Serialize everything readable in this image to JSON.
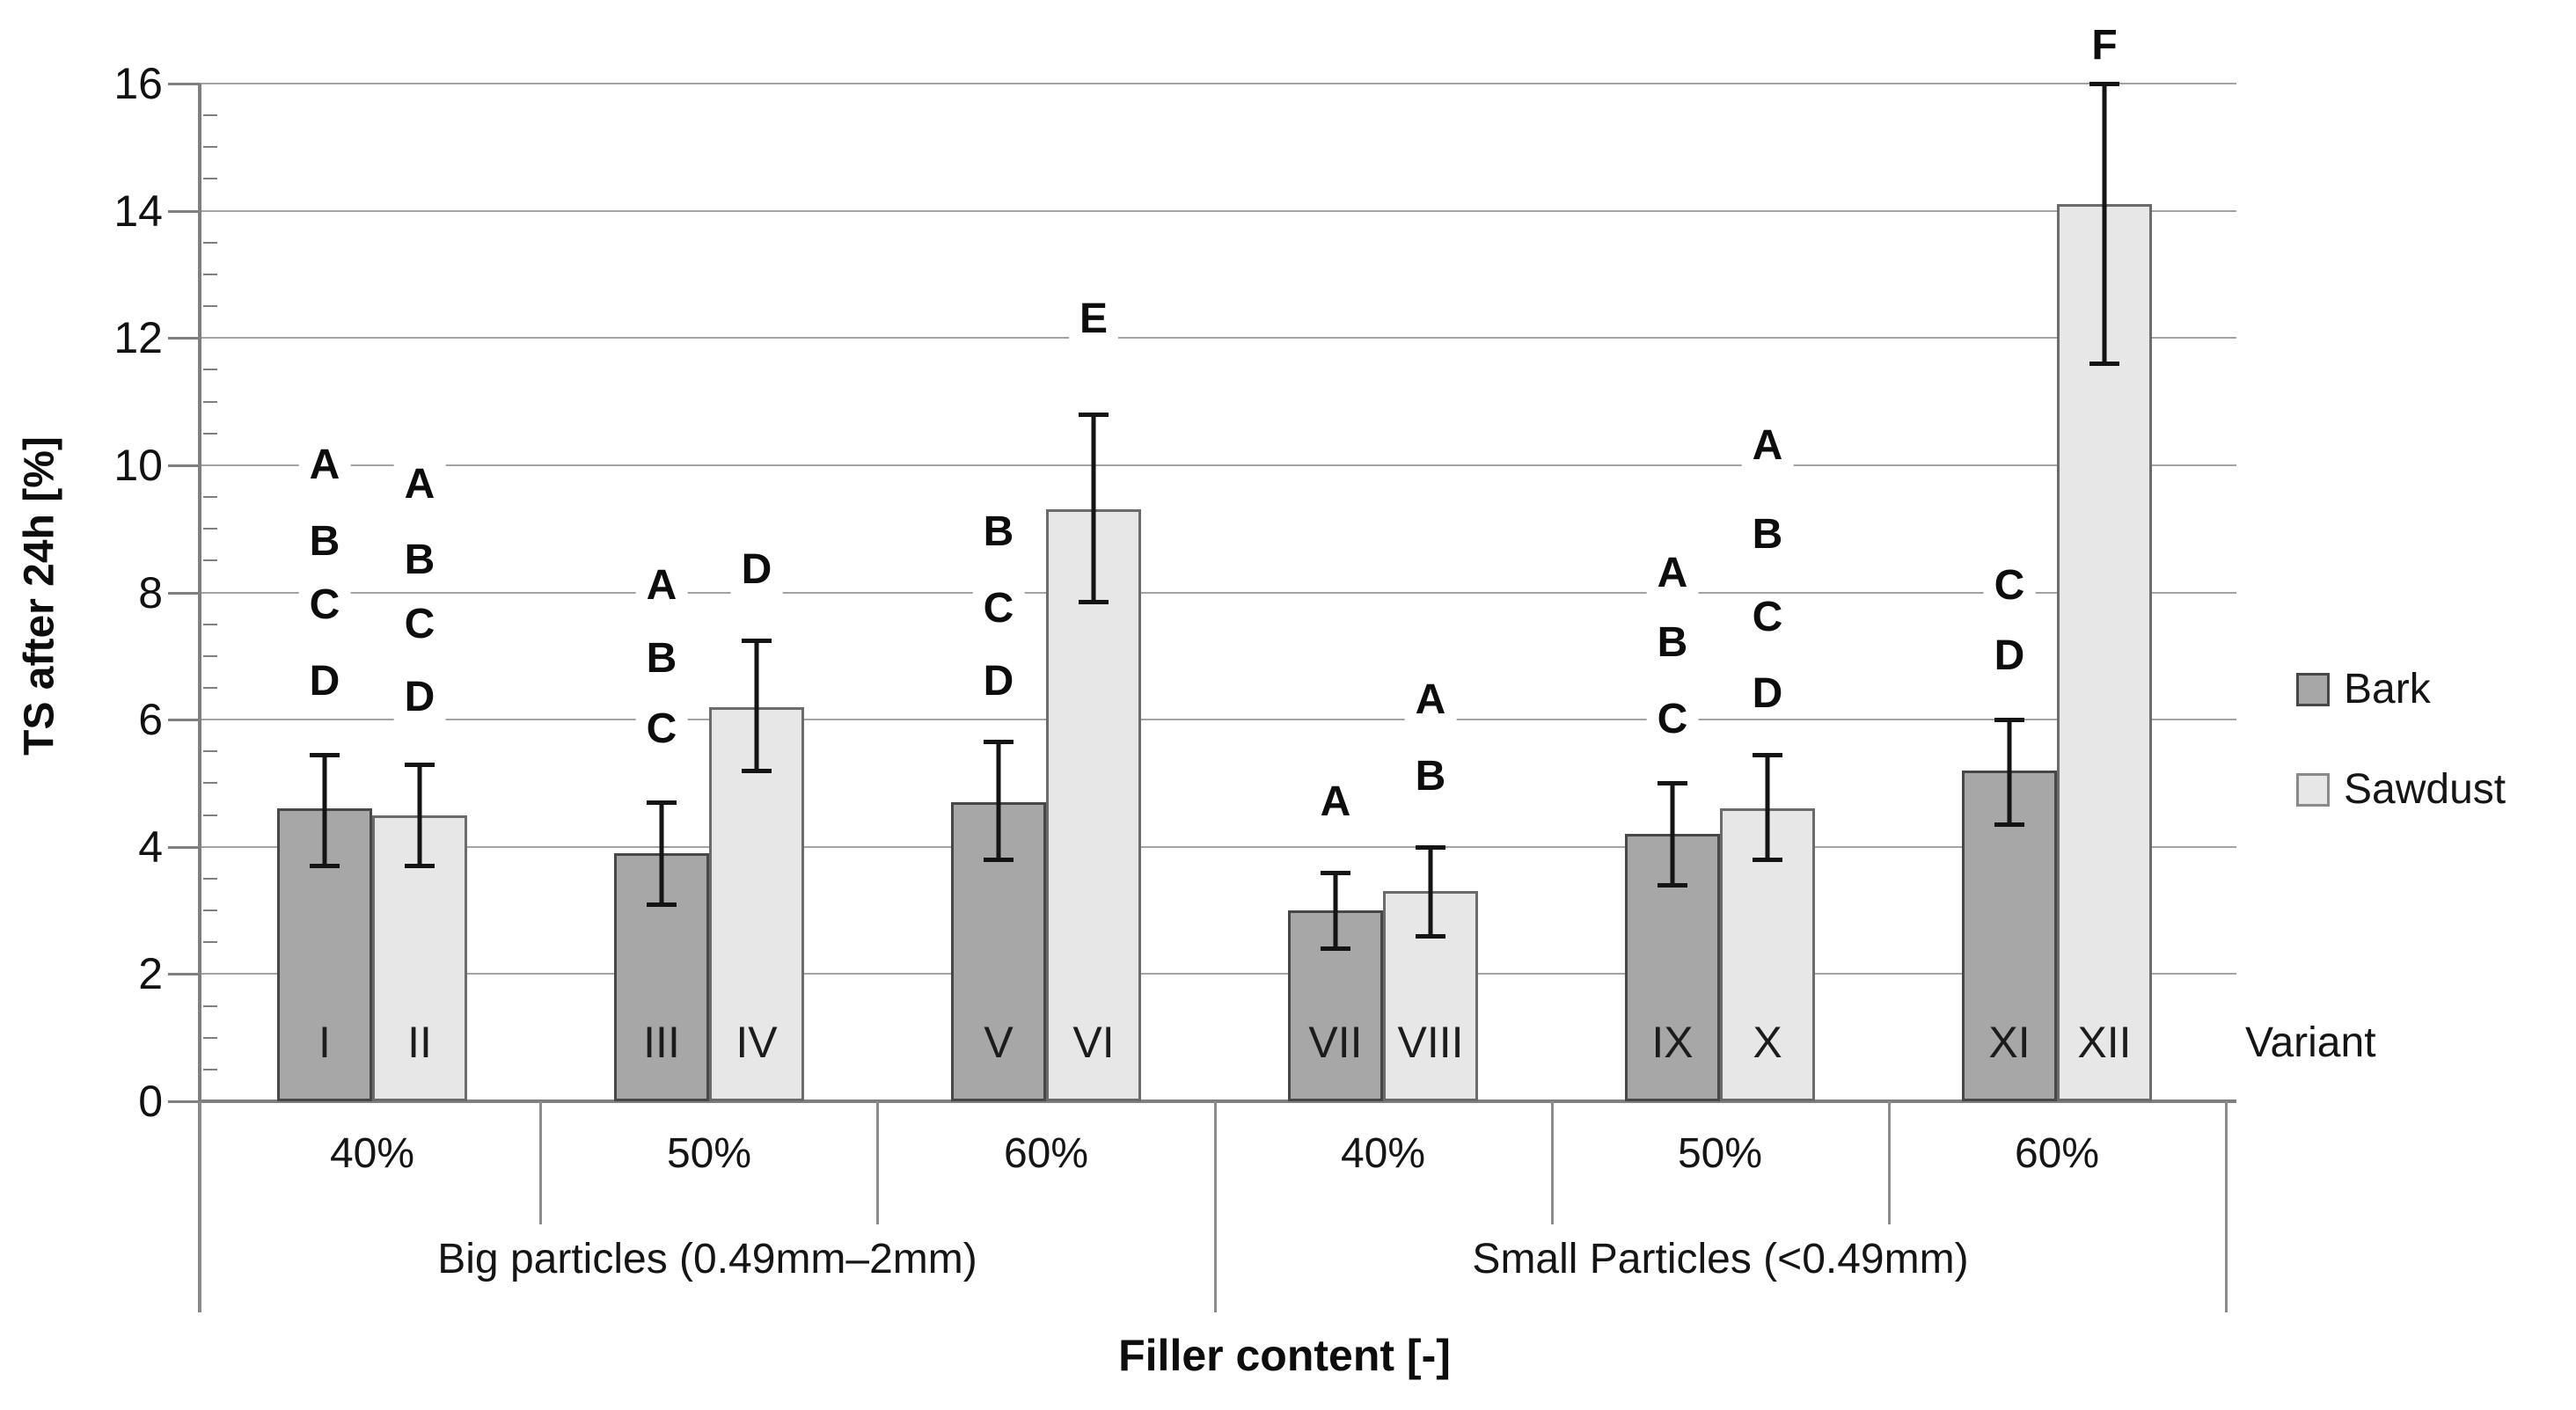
{
  "chart_data": {
    "type": "bar",
    "title": "",
    "ylabel": "TS after 24h [%]",
    "xlabel": "Filler content [-]",
    "right_axis_label": "Variant",
    "ylim": [
      0,
      16
    ],
    "yticks": [
      0,
      2,
      4,
      6,
      8,
      10,
      12,
      14,
      16
    ],
    "minor_tick_step": 0.5,
    "grid": true,
    "legend_position": "right",
    "groups": [
      {
        "label": "Big particles (0.49mm–2mm)",
        "fillers": [
          "40%",
          "50%",
          "60%"
        ]
      },
      {
        "label": "Small Particles (<0.49mm)",
        "fillers": [
          "40%",
          "50%",
          "60%"
        ]
      }
    ],
    "series": [
      {
        "name": "Bark",
        "fill": "#a7a7a7",
        "border": "#474747"
      },
      {
        "name": "Sawdust",
        "fill": "#e7e7e7",
        "border": "#6b6b6b"
      }
    ],
    "bars": [
      {
        "variant": "I",
        "group": "Big particles (0.49mm–2mm)",
        "filler": "40%",
        "series": "Bark",
        "value": 4.6,
        "err_low": 3.7,
        "err_high": 5.45,
        "letters": [
          [
            "A",
            10.0
          ],
          [
            "B",
            8.8
          ],
          [
            "C",
            7.8
          ],
          [
            "D",
            6.6
          ]
        ]
      },
      {
        "variant": "II",
        "group": "Big particles (0.49mm–2mm)",
        "filler": "40%",
        "series": "Sawdust",
        "value": 4.5,
        "err_low": 3.7,
        "err_high": 5.3,
        "letters": [
          [
            "A",
            9.7
          ],
          [
            "B",
            8.5
          ],
          [
            "C",
            7.5
          ],
          [
            "D",
            6.35
          ]
        ]
      },
      {
        "variant": "III",
        "group": "Big particles (0.49mm–2mm)",
        "filler": "50%",
        "series": "Bark",
        "value": 3.9,
        "err_low": 3.1,
        "err_high": 4.7,
        "letters": [
          [
            "A",
            8.1
          ],
          [
            "B",
            6.95
          ],
          [
            "C",
            5.85
          ]
        ]
      },
      {
        "variant": "IV",
        "group": "Big particles (0.49mm–2mm)",
        "filler": "50%",
        "series": "Sawdust",
        "value": 6.2,
        "err_low": 5.2,
        "err_high": 7.25,
        "letters": [
          [
            "D",
            8.35
          ]
        ]
      },
      {
        "variant": "V",
        "group": "Big particles (0.49mm–2mm)",
        "filler": "60%",
        "series": "Bark",
        "value": 4.7,
        "err_low": 3.8,
        "err_high": 5.65,
        "letters": [
          [
            "B",
            8.95
          ],
          [
            "C",
            7.75
          ],
          [
            "D",
            6.6
          ]
        ]
      },
      {
        "variant": "VI",
        "group": "Big particles (0.49mm–2mm)",
        "filler": "60%",
        "series": "Sawdust",
        "value": 9.3,
        "err_low": 7.85,
        "err_high": 10.8,
        "letters": [
          [
            "E",
            12.3
          ]
        ]
      },
      {
        "variant": "VII",
        "group": "Small Particles (<0.49mm)",
        "filler": "40%",
        "series": "Bark",
        "value": 3.0,
        "err_low": 2.4,
        "err_high": 3.6,
        "letters": [
          [
            "A",
            4.7
          ]
        ]
      },
      {
        "variant": "VIII",
        "group": "Small Particles (<0.49mm)",
        "filler": "40%",
        "series": "Sawdust",
        "value": 3.3,
        "err_low": 2.6,
        "err_high": 4.0,
        "letters": [
          [
            "A",
            6.3
          ],
          [
            "B",
            5.1
          ]
        ]
      },
      {
        "variant": "IX",
        "group": "Small Particles (<0.49mm)",
        "filler": "50%",
        "series": "Bark",
        "value": 4.2,
        "err_low": 3.4,
        "err_high": 5.0,
        "letters": [
          [
            "A",
            8.3
          ],
          [
            "B",
            7.2
          ],
          [
            "C",
            6.0
          ]
        ]
      },
      {
        "variant": "X",
        "group": "Small Particles (<0.49mm)",
        "filler": "50%",
        "series": "Sawdust",
        "value": 4.6,
        "err_low": 3.8,
        "err_high": 5.45,
        "letters": [
          [
            "A",
            10.3
          ],
          [
            "B",
            8.9
          ],
          [
            "C",
            7.6
          ],
          [
            "D",
            6.4
          ]
        ]
      },
      {
        "variant": "XI",
        "group": "Small Particles (<0.49mm)",
        "filler": "60%",
        "series": "Bark",
        "value": 5.2,
        "err_low": 4.35,
        "err_high": 6.0,
        "letters": [
          [
            "C",
            8.1
          ],
          [
            "D",
            7.0
          ]
        ]
      },
      {
        "variant": "XII",
        "group": "Small Particles (<0.49mm)",
        "filler": "60%",
        "series": "Sawdust",
        "value": 14.1,
        "err_low": 11.6,
        "err_high": 16.0,
        "letters": [
          [
            "F",
            16.6
          ]
        ]
      }
    ]
  }
}
